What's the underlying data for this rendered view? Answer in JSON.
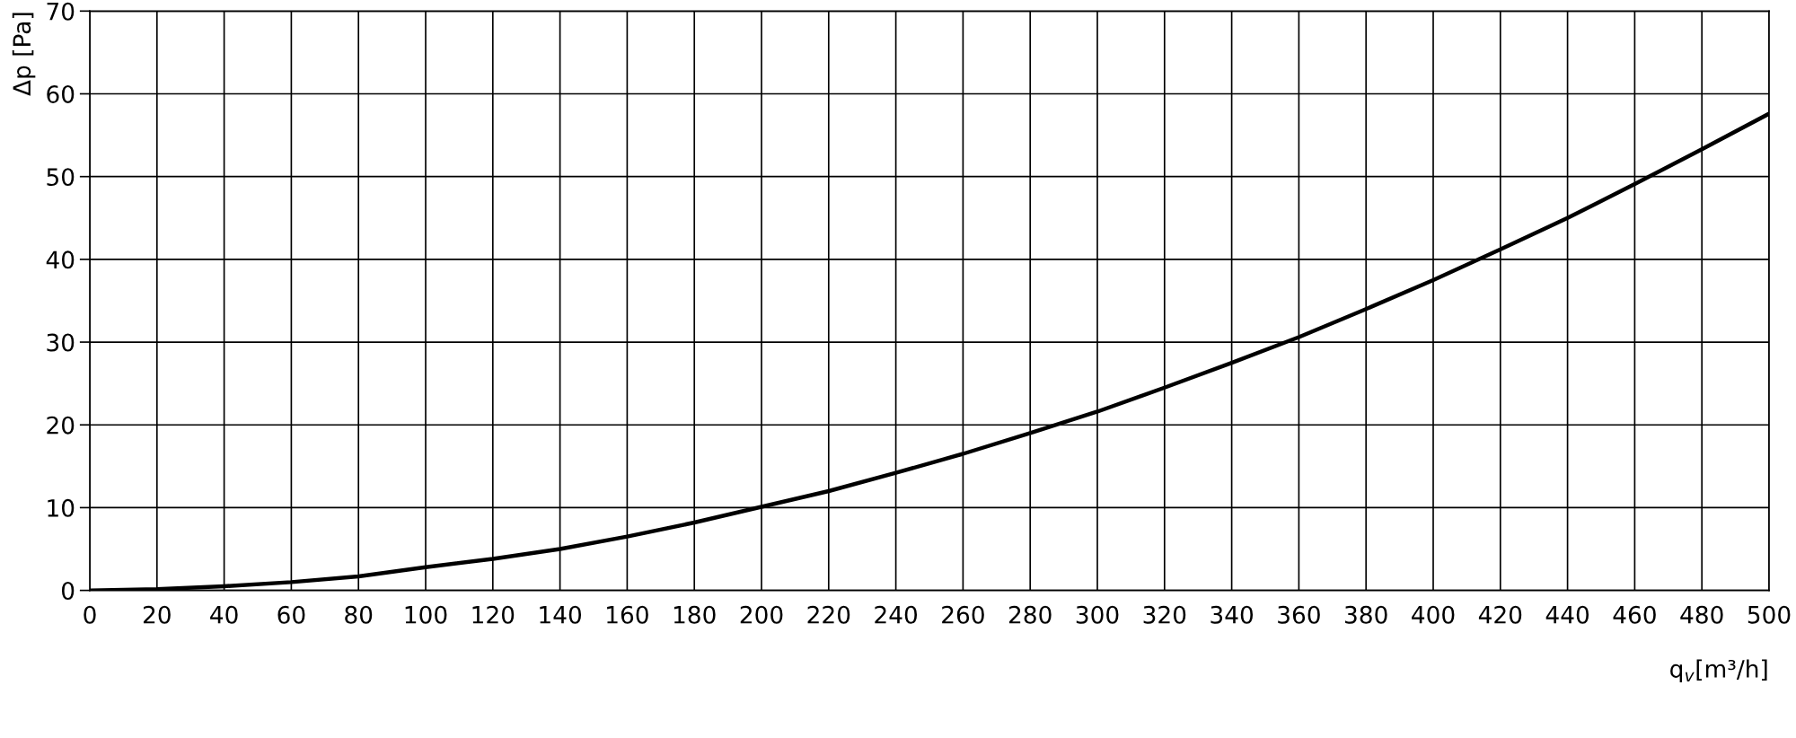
{
  "chart_data": {
    "type": "line",
    "xlabel": "q$_{v}$[m³/h]",
    "ylabel": "Δp [Pa]",
    "x": [
      0,
      20,
      40,
      60,
      80,
      100,
      120,
      140,
      160,
      180,
      200,
      220,
      240,
      260,
      280,
      300,
      320,
      340,
      360,
      380,
      400,
      420,
      440,
      460,
      480,
      500
    ],
    "series": [
      {
        "color": "#000000",
        "values": [
          0,
          0.15,
          0.5,
          1.0,
          1.7,
          2.8,
          3.8,
          5.0,
          6.5,
          8.2,
          10.1,
          12.0,
          14.2,
          16.5,
          19.0,
          21.6,
          24.5,
          27.5,
          30.6,
          34.0,
          37.5,
          41.2,
          45.0,
          49.1,
          53.3,
          57.6
        ]
      }
    ],
    "xlim": [
      0,
      500
    ],
    "xticks": [
      0,
      20,
      40,
      60,
      80,
      100,
      120,
      140,
      160,
      180,
      200,
      220,
      240,
      260,
      280,
      300,
      320,
      340,
      360,
      380,
      400,
      420,
      440,
      460,
      480,
      500
    ],
    "ylim": [
      0,
      70
    ],
    "yticks": [
      0,
      10,
      20,
      30,
      40,
      50,
      60,
      70
    ],
    "grid": true,
    "marker": "none",
    "line_style": "solid"
  }
}
